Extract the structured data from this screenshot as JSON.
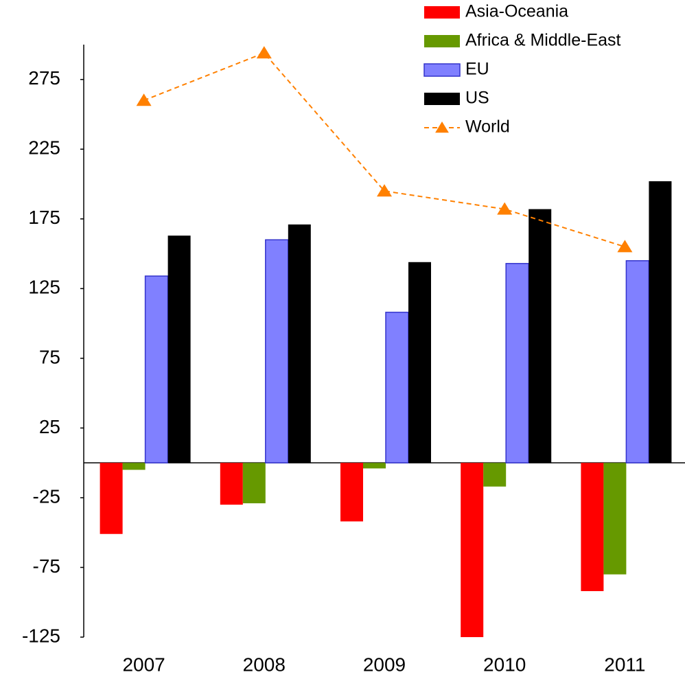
{
  "chart_data": {
    "type": "bar",
    "categories": [
      "2007",
      "2008",
      "2009",
      "2010",
      "2011"
    ],
    "series": [
      {
        "name": "Asia-Oceania",
        "color": "#ff0000",
        "values": [
          -51,
          -30,
          -42,
          -125,
          -92
        ]
      },
      {
        "name": "Africa & Middle-East",
        "color": "#669900",
        "values": [
          -5,
          -29,
          -4,
          -17,
          -80
        ]
      },
      {
        "name": "EU",
        "color": "#8080ff",
        "values": [
          134,
          160,
          108,
          143,
          145
        ]
      },
      {
        "name": "US",
        "color": "#000000",
        "values": [
          163,
          171,
          144,
          182,
          202
        ]
      },
      {
        "name": "World",
        "type": "line",
        "color": "#ff8000",
        "values": [
          260,
          294,
          195,
          182,
          155
        ]
      }
    ],
    "ylim": [
      -125,
      300
    ],
    "yticks": [
      -125,
      -75,
      -25,
      25,
      75,
      125,
      175,
      225,
      275
    ],
    "legend": "top-right",
    "grid": false
  }
}
